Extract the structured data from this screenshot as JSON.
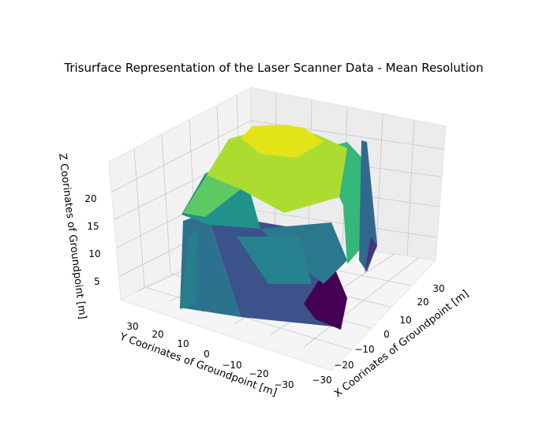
{
  "chart_data": {
    "type": "trisurface",
    "title": "Trisurface Representation of the Laser Scanner Data - Mean Resolution",
    "xlabel": "X Coorinates of Groundpoint [m]",
    "ylabel": "Y Coorinates of Groundpoint [m]",
    "zlabel": "Z Coorinates of Groundpoint [m]",
    "x_ticks": [
      "−30",
      "−20",
      "−10",
      "0",
      "10",
      "20",
      "30"
    ],
    "y_ticks": [
      "30",
      "20",
      "10",
      "0",
      "−10",
      "−20",
      "−30"
    ],
    "z_ticks": [
      "5",
      "10",
      "15",
      "20"
    ],
    "xlim": [
      -35,
      38
    ],
    "ylim": [
      -36,
      36
    ],
    "zlim": [
      2,
      25
    ],
    "colormap": "viridis",
    "grid": true
  }
}
